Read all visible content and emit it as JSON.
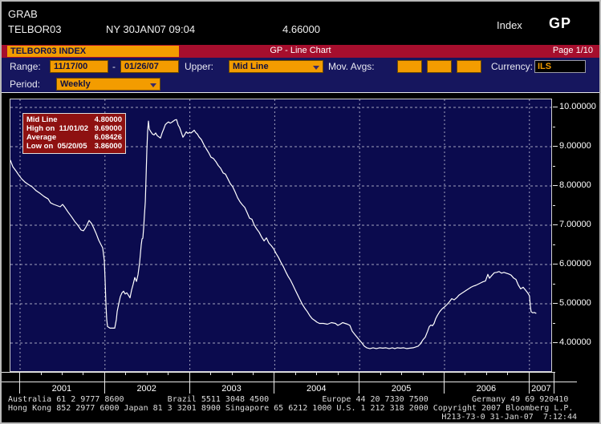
{
  "header": {
    "function_name": "GRAB",
    "security": "TELBOR03",
    "venue_time": "NY 30JAN07 09:04",
    "last_value": "4.66000",
    "index_label": "Index",
    "mnemonic": "GP"
  },
  "title_bar": {
    "security_title": "TELBOR03 INDEX",
    "chart_title": "GP - Line Chart",
    "page": "Page 1/10"
  },
  "toolbar": {
    "range_label": "Range:",
    "range_start": "11/17/00",
    "range_dash": "-",
    "range_end": "01/26/07",
    "upper_label": "Upper:",
    "upper_value": "Mid Line",
    "mov_avgs_label": "Mov. Avgs:",
    "currency_label": "Currency:",
    "currency_value": "ILS",
    "period_label": "Period:",
    "period_value": "Weekly"
  },
  "legend": {
    "rows": [
      {
        "label": "Mid Line",
        "value": "4.80000"
      },
      {
        "label": "High on  11/01/02",
        "value": "9.69000"
      },
      {
        "label": "Average",
        "value": "6.08426"
      },
      {
        "label": "Low on  05/20/05",
        "value": "3.86000"
      }
    ],
    "background": "#8e1111"
  },
  "colors": {
    "accent_orange": "#f39c00",
    "title_red": "#a60e2d",
    "toolbar_navy": "#16165e",
    "plot_navy": "#0b0b4e",
    "line_white": "#ffffff"
  },
  "footer": {
    "line1": "Australia 61 2 9777 8600         Brazil 5511 3048 4500           Europe 44 20 7330 7500         Germany 49 69 920410",
    "line2": "Hong Kong 852 2977 6000 Japan 81 3 3201 8900 Singapore 65 6212 1000 U.S. 1 212 318 2000 Copyright 2007 Bloomberg L.P.",
    "line3": "H213-73-0 31-Jan-07  7:12:44"
  },
  "chart_data": {
    "type": "line",
    "title": "GP - Line Chart",
    "series_name": "Mid Line",
    "line_color": "#ffffff",
    "grid": true,
    "ylim": [
      3.25,
      10.2
    ],
    "x_range": [
      "11/17/00",
      "01/26/07"
    ],
    "y_ticks": [
      4,
      5,
      6,
      7,
      8,
      9,
      10
    ],
    "y_tick_labels": [
      "4.00000",
      "5.00000",
      "6.00000",
      "7.00000",
      "8.00000",
      "9.00000",
      "10.00000"
    ],
    "x_year_labels": [
      "2001",
      "2002",
      "2003",
      "2004",
      "2005",
      "2006",
      "2007"
    ],
    "stats": {
      "mid_line": 4.8,
      "high": 9.69,
      "high_date": "11/01/02",
      "average": 6.08426,
      "low": 3.86,
      "low_date": "05/20/05"
    },
    "points": [
      [
        2000.887,
        8.65
      ],
      [
        2000.915,
        8.49
      ],
      [
        2000.953,
        8.38
      ],
      [
        2000.981,
        8.29
      ],
      [
        2001.019,
        8.18
      ],
      [
        2001.057,
        8.1
      ],
      [
        2001.095,
        8.04
      ],
      [
        2001.142,
        7.98
      ],
      [
        2001.189,
        7.88
      ],
      [
        2001.236,
        7.81
      ],
      [
        2001.284,
        7.73
      ],
      [
        2001.331,
        7.67
      ],
      [
        2001.359,
        7.57
      ],
      [
        2001.397,
        7.53
      ],
      [
        2001.435,
        7.5
      ],
      [
        2001.473,
        7.47
      ],
      [
        2001.501,
        7.53
      ],
      [
        2001.529,
        7.45
      ],
      [
        2001.567,
        7.33
      ],
      [
        2001.605,
        7.22
      ],
      [
        2001.643,
        7.1
      ],
      [
        2001.681,
        7.0
      ],
      [
        2001.718,
        6.88
      ],
      [
        2001.747,
        6.86
      ],
      [
        2001.775,
        6.95
      ],
      [
        2001.813,
        7.12
      ],
      [
        2001.841,
        7.05
      ],
      [
        2001.87,
        6.92
      ],
      [
        2001.898,
        6.78
      ],
      [
        2001.926,
        6.62
      ],
      [
        2001.955,
        6.5
      ],
      [
        2001.974,
        6.42
      ],
      [
        2001.992,
        6.1
      ],
      [
        2002.002,
        5.6
      ],
      [
        2002.011,
        5.0
      ],
      [
        2002.021,
        4.6
      ],
      [
        2002.03,
        4.42
      ],
      [
        2002.059,
        4.38
      ],
      [
        2002.087,
        4.38
      ],
      [
        2002.115,
        4.38
      ],
      [
        2002.134,
        4.6
      ],
      [
        2002.144,
        4.8
      ],
      [
        2002.163,
        5.0
      ],
      [
        2002.181,
        5.18
      ],
      [
        2002.2,
        5.28
      ],
      [
        2002.219,
        5.32
      ],
      [
        2002.238,
        5.25
      ],
      [
        2002.257,
        5.28
      ],
      [
        2002.276,
        5.22
      ],
      [
        2002.295,
        5.15
      ],
      [
        2002.314,
        5.35
      ],
      [
        2002.333,
        5.5
      ],
      [
        2002.352,
        5.67
      ],
      [
        2002.371,
        5.57
      ],
      [
        2002.389,
        5.74
      ],
      [
        2002.408,
        6.05
      ],
      [
        2002.427,
        6.5
      ],
      [
        2002.437,
        6.65
      ],
      [
        2002.446,
        6.67
      ],
      [
        2002.456,
        6.92
      ],
      [
        2002.465,
        7.26
      ],
      [
        2002.475,
        7.6
      ],
      [
        2002.484,
        8.2
      ],
      [
        2002.493,
        8.9
      ],
      [
        2002.503,
        9.4
      ],
      [
        2002.512,
        9.65
      ],
      [
        2002.522,
        9.45
      ],
      [
        2002.541,
        9.38
      ],
      [
        2002.56,
        9.32
      ],
      [
        2002.579,
        9.3
      ],
      [
        2002.597,
        9.35
      ],
      [
        2002.616,
        9.28
      ],
      [
        2002.635,
        9.25
      ],
      [
        2002.654,
        9.22
      ],
      [
        2002.673,
        9.35
      ],
      [
        2002.692,
        9.45
      ],
      [
        2002.711,
        9.56
      ],
      [
        2002.73,
        9.6
      ],
      [
        2002.749,
        9.63
      ],
      [
        2002.768,
        9.6
      ],
      [
        2002.786,
        9.62
      ],
      [
        2002.805,
        9.65
      ],
      [
        2002.824,
        9.68
      ],
      [
        2002.843,
        9.69
      ],
      [
        2002.862,
        9.55
      ],
      [
        2002.881,
        9.48
      ],
      [
        2002.9,
        9.36
      ],
      [
        2002.919,
        9.24
      ],
      [
        2002.938,
        9.3
      ],
      [
        2002.957,
        9.38
      ],
      [
        2002.975,
        9.34
      ],
      [
        2002.994,
        9.36
      ],
      [
        2003.013,
        9.35
      ],
      [
        2003.032,
        9.38
      ],
      [
        2003.051,
        9.42
      ],
      [
        2003.07,
        9.36
      ],
      [
        2003.089,
        9.32
      ],
      [
        2003.108,
        9.25
      ],
      [
        2003.136,
        9.18
      ],
      [
        2003.165,
        9.05
      ],
      [
        2003.193,
        8.95
      ],
      [
        2003.221,
        8.85
      ],
      [
        2003.25,
        8.73
      ],
      [
        2003.278,
        8.7
      ],
      [
        2003.306,
        8.62
      ],
      [
        2003.335,
        8.52
      ],
      [
        2003.363,
        8.45
      ],
      [
        2003.392,
        8.33
      ],
      [
        2003.42,
        8.3
      ],
      [
        2003.448,
        8.18
      ],
      [
        2003.476,
        8.06
      ],
      [
        2003.505,
        7.98
      ],
      [
        2003.533,
        7.85
      ],
      [
        2003.562,
        7.7
      ],
      [
        2003.59,
        7.6
      ],
      [
        2003.618,
        7.52
      ],
      [
        2003.647,
        7.45
      ],
      [
        2003.675,
        7.32
      ],
      [
        2003.703,
        7.18
      ],
      [
        2003.732,
        7.15
      ],
      [
        2003.76,
        7.0
      ],
      [
        2003.789,
        6.9
      ],
      [
        2003.817,
        6.82
      ],
      [
        2003.845,
        6.7
      ],
      [
        2003.874,
        6.6
      ],
      [
        2003.902,
        6.68
      ],
      [
        2003.93,
        6.55
      ],
      [
        2003.959,
        6.48
      ],
      [
        2003.987,
        6.4
      ],
      [
        2004.016,
        6.28
      ],
      [
        2004.044,
        6.18
      ],
      [
        2004.072,
        6.06
      ],
      [
        2004.1,
        5.95
      ],
      [
        2004.129,
        5.82
      ],
      [
        2004.157,
        5.7
      ],
      [
        2004.186,
        5.6
      ],
      [
        2004.214,
        5.48
      ],
      [
        2004.242,
        5.35
      ],
      [
        2004.271,
        5.22
      ],
      [
        2004.299,
        5.1
      ],
      [
        2004.327,
        4.98
      ],
      [
        2004.356,
        4.88
      ],
      [
        2004.384,
        4.8
      ],
      [
        2004.412,
        4.7
      ],
      [
        2004.441,
        4.62
      ],
      [
        2004.469,
        4.58
      ],
      [
        2004.498,
        4.53
      ],
      [
        2004.526,
        4.5
      ],
      [
        2004.573,
        4.5
      ],
      [
        2004.62,
        4.48
      ],
      [
        2004.668,
        4.52
      ],
      [
        2004.715,
        4.5
      ],
      [
        2004.743,
        4.45
      ],
      [
        2004.771,
        4.48
      ],
      [
        2004.8,
        4.52
      ],
      [
        2004.828,
        4.5
      ],
      [
        2004.857,
        4.48
      ],
      [
        2004.885,
        4.45
      ],
      [
        2004.913,
        4.3
      ],
      [
        2004.951,
        4.2
      ],
      [
        2004.989,
        4.1
      ],
      [
        2005.027,
        4.0
      ],
      [
        2005.055,
        3.92
      ],
      [
        2005.083,
        3.88
      ],
      [
        2005.121,
        3.86
      ],
      [
        2005.159,
        3.88
      ],
      [
        2005.197,
        3.86
      ],
      [
        2005.235,
        3.88
      ],
      [
        2005.272,
        3.87
      ],
      [
        2005.31,
        3.88
      ],
      [
        2005.348,
        3.86
      ],
      [
        2005.386,
        3.88
      ],
      [
        2005.414,
        3.86
      ],
      [
        2005.442,
        3.88
      ],
      [
        2005.48,
        3.87
      ],
      [
        2005.518,
        3.88
      ],
      [
        2005.556,
        3.86
      ],
      [
        2005.593,
        3.87
      ],
      [
        2005.631,
        3.88
      ],
      [
        2005.66,
        3.9
      ],
      [
        2005.688,
        3.92
      ],
      [
        2005.716,
        3.98
      ],
      [
        2005.745,
        4.08
      ],
      [
        2005.773,
        4.15
      ],
      [
        2005.801,
        4.3
      ],
      [
        2005.82,
        4.42
      ],
      [
        2005.839,
        4.46
      ],
      [
        2005.858,
        4.44
      ],
      [
        2005.877,
        4.5
      ],
      [
        2005.896,
        4.62
      ],
      [
        2005.915,
        4.7
      ],
      [
        2005.943,
        4.8
      ],
      [
        2005.971,
        4.87
      ],
      [
        2006.0,
        4.92
      ],
      [
        2006.028,
        4.98
      ],
      [
        2006.057,
        5.05
      ],
      [
        2006.085,
        5.13
      ],
      [
        2006.113,
        5.1
      ],
      [
        2006.142,
        5.15
      ],
      [
        2006.17,
        5.22
      ],
      [
        2006.198,
        5.26
      ],
      [
        2006.227,
        5.3
      ],
      [
        2006.255,
        5.34
      ],
      [
        2006.283,
        5.38
      ],
      [
        2006.312,
        5.42
      ],
      [
        2006.34,
        5.45
      ],
      [
        2006.368,
        5.47
      ],
      [
        2006.397,
        5.5
      ],
      [
        2006.425,
        5.53
      ],
      [
        2006.453,
        5.56
      ],
      [
        2006.482,
        5.58
      ],
      [
        2006.51,
        5.75
      ],
      [
        2006.529,
        5.65
      ],
      [
        2006.557,
        5.72
      ],
      [
        2006.586,
        5.79
      ],
      [
        2006.614,
        5.8
      ],
      [
        2006.642,
        5.82
      ],
      [
        2006.671,
        5.78
      ],
      [
        2006.699,
        5.8
      ],
      [
        2006.727,
        5.78
      ],
      [
        2006.756,
        5.76
      ],
      [
        2006.784,
        5.73
      ],
      [
        2006.812,
        5.66
      ],
      [
        2006.841,
        5.62
      ],
      [
        2006.869,
        5.48
      ],
      [
        2006.897,
        5.38
      ],
      [
        2006.926,
        5.42
      ],
      [
        2006.954,
        5.35
      ],
      [
        2006.982,
        5.27
      ],
      [
        2007.001,
        5.2
      ],
      [
        2007.01,
        4.95
      ],
      [
        2007.02,
        4.8
      ],
      [
        2007.039,
        4.77
      ],
      [
        2007.058,
        4.78
      ],
      [
        2007.077,
        4.76
      ]
    ]
  }
}
